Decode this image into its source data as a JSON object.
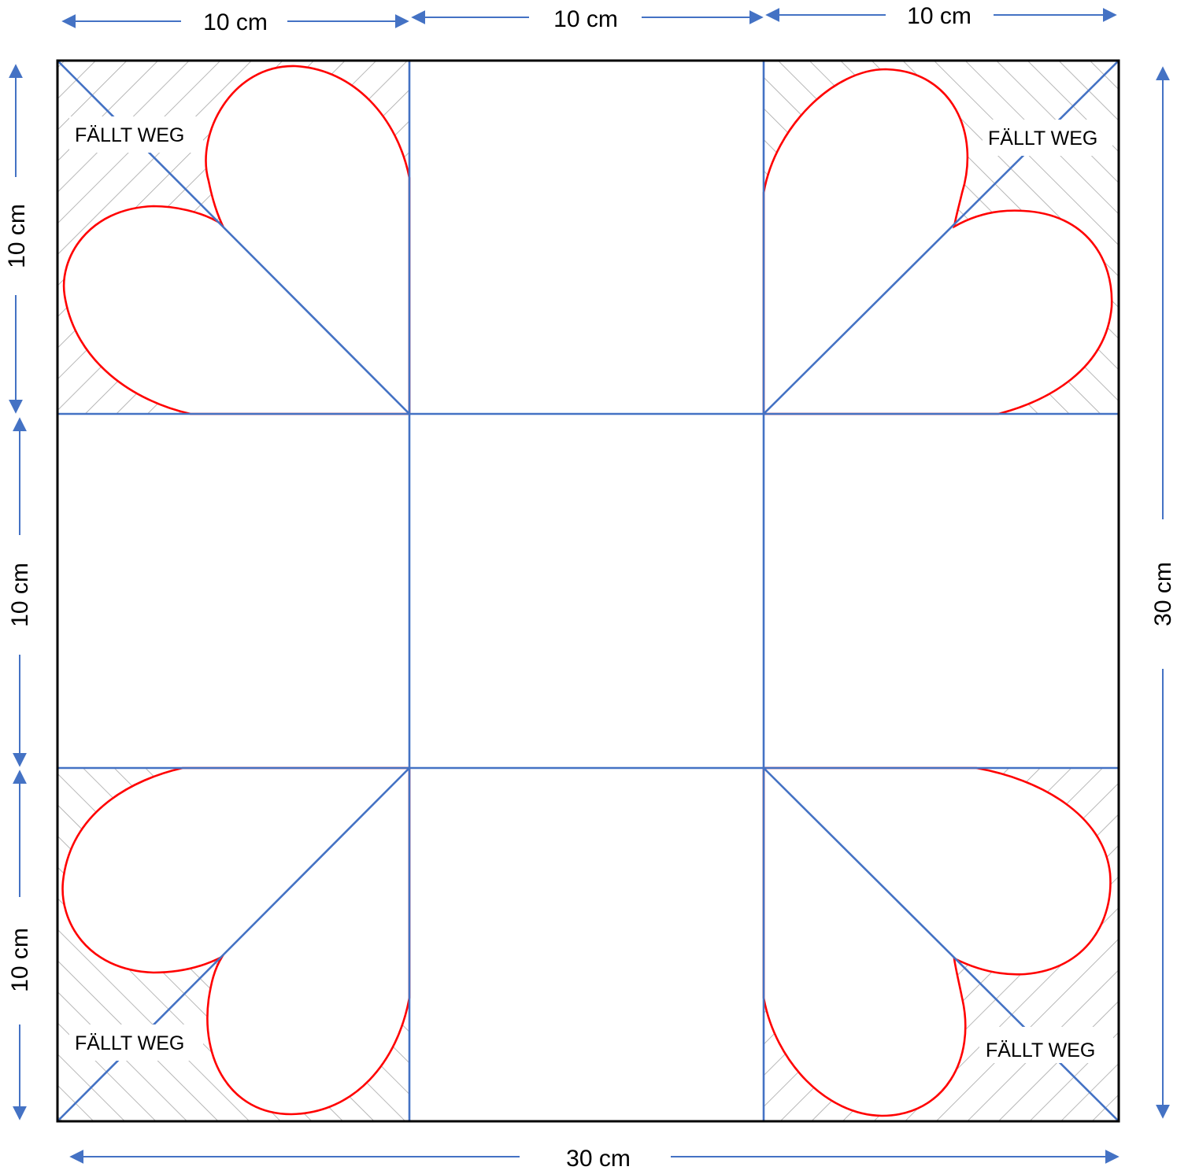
{
  "colors": {
    "outline": "#000000",
    "fold_lines": "#4472c4",
    "heart_curves": "#ff0000",
    "hatch": "#a6a6a6",
    "arrows": "#4472c4"
  },
  "dimensions": {
    "top_left": "10 cm",
    "top_middle": "10 cm",
    "top_right": "10 cm",
    "left_top": "10 cm",
    "left_middle": "10 cm",
    "left_bottom": "10 cm",
    "right": "30 cm",
    "bottom": "30 cm"
  },
  "corner_labels": {
    "top_left": "FÄLLT WEG",
    "top_right": "FÄLLT WEG",
    "bottom_left": "FÄLLT WEG",
    "bottom_right": "FÄLLT WEG"
  }
}
